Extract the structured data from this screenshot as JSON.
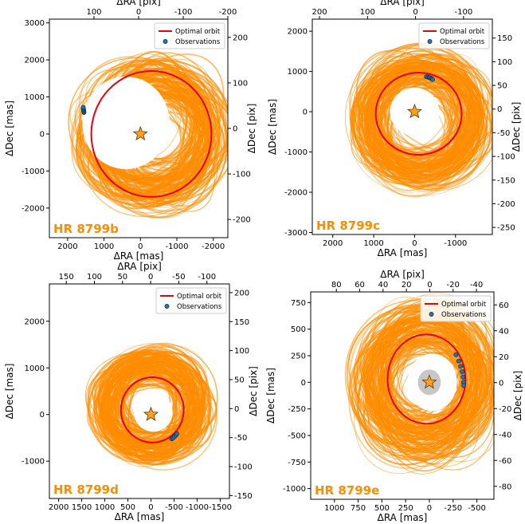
{
  "chart_data": [
    {
      "type": "scatter",
      "planet_label": "HR 8799b",
      "xlabel": "ΔRA [mas]",
      "ylabel": "ΔDec [mas]",
      "top_xlabel": "ΔRA [pix]",
      "right_ylabel": "ΔDec [pix]",
      "xlim": [
        2500,
        -2400
      ],
      "ylim": [
        -2800,
        3100
      ],
      "xticks": [
        2000,
        1000,
        0,
        -1000,
        -2000
      ],
      "yticks": [
        -2000,
        -1000,
        0,
        1000,
        2000,
        3000
      ],
      "top_xlim": [
        200,
        -200
      ],
      "top_xticks": [
        100,
        0,
        -100,
        -200
      ],
      "right_ylim": [
        -240,
        240
      ],
      "right_yticks": [
        -200,
        -100,
        0,
        100,
        200
      ],
      "legend": [
        "Optimal orbit",
        "Observations"
      ],
      "optimal_orbit": {
        "cx": -300,
        "cy": 0,
        "a": 1650,
        "b": 1700
      },
      "orbit_cloud": {
        "cx": -350,
        "cy": 0,
        "a": 1800,
        "b": 1800
      },
      "hole": {
        "cx": 400,
        "cy": 300,
        "rx": 1200,
        "ry": 1250
      },
      "observations": [
        [
          1550,
          580
        ],
        [
          1555,
          610
        ],
        [
          1560,
          640
        ],
        [
          1565,
          670
        ],
        [
          1570,
          700
        ],
        [
          1572,
          720
        ]
      ]
    },
    {
      "type": "scatter",
      "planet_label": "HR 8799c",
      "xlabel": "ΔRA [mas]",
      "ylabel": "ΔDec [mas]",
      "top_xlabel": "ΔRA [pix]",
      "right_ylabel": "ΔDec [pix]",
      "xlim": [
        2500,
        -1900
      ],
      "ylim": [
        -3050,
        2300
      ],
      "xticks": [
        2000,
        1000,
        0,
        -1000
      ],
      "yticks": [
        -3000,
        -2000,
        -1000,
        0,
        1000,
        2000
      ],
      "top_xlim": [
        215,
        -160
      ],
      "top_xticks": [
        200,
        100,
        0,
        -100
      ],
      "right_ylim": [
        -265,
        190
      ],
      "right_yticks": [
        -250,
        -200,
        -150,
        -100,
        -50,
        0,
        50,
        100,
        150
      ],
      "legend": [
        "Optimal orbit",
        "Observations"
      ],
      "optimal_orbit": {
        "cx": -100,
        "cy": -50,
        "a": 1050,
        "b": 1020
      },
      "orbit_cloud": {
        "cx": -150,
        "cy": -200,
        "a": 1500,
        "b": 1500
      },
      "hole": {
        "cx": 0,
        "cy": 0,
        "rx": 600,
        "ry": 600
      },
      "observations": [
        [
          -290,
          870
        ],
        [
          -330,
          860
        ],
        [
          -360,
          850
        ],
        [
          -390,
          840
        ],
        [
          -420,
          820
        ],
        [
          -440,
          800
        ]
      ]
    },
    {
      "type": "scatter",
      "planet_label": "HR 8799d",
      "xlabel": "ΔRA [mas]",
      "ylabel": "ΔDec [mas]",
      "top_xlabel": "ΔRA [pix]",
      "right_ylabel": "ΔDec [pix]",
      "xlim": [
        2200,
        -1700
      ],
      "ylim": [
        -1800,
        2800
      ],
      "xticks": [
        2000,
        1500,
        1000,
        500,
        0,
        -500,
        -1000,
        -1500
      ],
      "yticks": [
        -1000,
        0,
        1000,
        2000
      ],
      "top_xlim": [
        180,
        -140
      ],
      "top_xticks": [
        150,
        100,
        50,
        0,
        -50,
        -100
      ],
      "right_ylim": [
        -155,
        215
      ],
      "right_yticks": [
        -150,
        -100,
        -50,
        0,
        50,
        100,
        150,
        200
      ],
      "legend": [
        "Optimal orbit",
        "Observations"
      ],
      "optimal_orbit": {
        "cx": -30,
        "cy": 100,
        "a": 680,
        "b": 700
      },
      "orbit_cloud": {
        "cx": 0,
        "cy": 200,
        "a": 1100,
        "b": 1050
      },
      "hole": {
        "cx": -50,
        "cy": 50,
        "rx": 420,
        "ry": 420
      },
      "observations": [
        [
          -450,
          -520
        ],
        [
          -480,
          -500
        ],
        [
          -510,
          -470
        ],
        [
          -540,
          -440
        ],
        [
          -560,
          -410
        ]
      ]
    },
    {
      "type": "scatter",
      "planet_label": "HR 8799e",
      "xlabel": "ΔRA [mas]",
      "ylabel": "ΔDec [mas]",
      "top_xlabel": "ΔRA [pix]",
      "right_ylabel": "ΔDec [pix]",
      "xlim": [
        1250,
        -680
      ],
      "ylim": [
        -1100,
        850
      ],
      "xticks": [
        1000,
        750,
        500,
        250,
        0,
        -250,
        -500
      ],
      "yticks": [
        -1000,
        -750,
        -500,
        -250,
        0,
        250,
        500,
        750
      ],
      "top_xlim": [
        102,
        -55
      ],
      "top_xticks": [
        80,
        60,
        40,
        20,
        0,
        -20,
        -40
      ],
      "right_ylim": [
        -90,
        70
      ],
      "right_yticks": [
        -80,
        -60,
        -40,
        -20,
        0,
        20,
        40,
        60
      ],
      "legend": [
        "Optimal orbit",
        "Observations"
      ],
      "optimal_orbit": {
        "cx": 30,
        "cy": 30,
        "a": 410,
        "b": 420
      },
      "orbit_cloud": {
        "cx": 50,
        "cy": 0,
        "a": 650,
        "b": 680
      },
      "hole": {
        "cx": -30,
        "cy": 0,
        "rx": 260,
        "ry": 270
      },
      "coronagraph_mask": {
        "cx": 0,
        "cy": 0,
        "r": 120
      },
      "observations": [
        [
          -280,
          260
        ],
        [
          -310,
          200
        ],
        [
          -330,
          150
        ],
        [
          -345,
          100
        ],
        [
          -355,
          50
        ],
        [
          -360,
          0
        ],
        [
          -362,
          -30
        ]
      ]
    }
  ],
  "colors": {
    "cloud": "#ff8c00",
    "optimal": "#e8000b",
    "observation": "#1f77b4",
    "star": "#ff9f1c",
    "label": "#ff8c00",
    "mask": "#bdbdbd"
  }
}
